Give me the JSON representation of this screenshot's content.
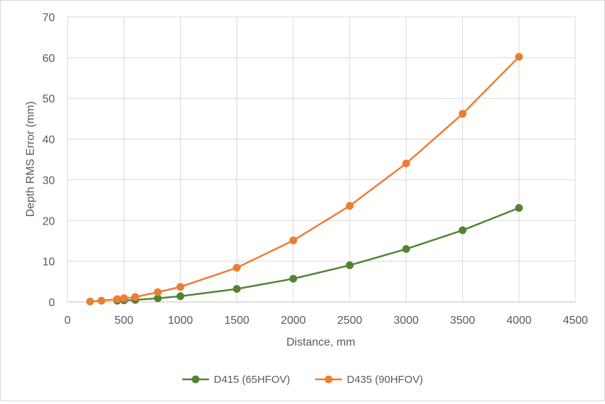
{
  "chart_data": {
    "type": "line",
    "title": "",
    "xlabel": "Distance, mm",
    "ylabel": "Depth RMS Error (mm)",
    "xlim": [
      0,
      4500
    ],
    "ylim": [
      0,
      70
    ],
    "xticks": [
      0,
      500,
      1000,
      1500,
      2000,
      2500,
      3000,
      3500,
      4000,
      4500
    ],
    "yticks": [
      0,
      10,
      20,
      30,
      40,
      50,
      60,
      70
    ],
    "grid": true,
    "legend_position": "bottom",
    "series": [
      {
        "name": "D415 (65HFOV)",
        "color": "#548235",
        "x": [
          440,
          500,
          600,
          800,
          1000,
          1500,
          2000,
          2500,
          3000,
          3500,
          4000
        ],
        "y": [
          0.3,
          0.4,
          0.5,
          0.9,
          1.4,
          3.2,
          5.7,
          9.0,
          13.0,
          17.6,
          23.1
        ]
      },
      {
        "name": "D435 (90HFOV)",
        "color": "#ED7D31",
        "x": [
          200,
          300,
          440,
          500,
          600,
          800,
          1000,
          1500,
          2000,
          2500,
          3000,
          3500,
          4000
        ],
        "y": [
          0.1,
          0.3,
          0.7,
          0.9,
          1.2,
          2.4,
          3.7,
          8.4,
          15.1,
          23.6,
          34.0,
          46.2,
          60.2
        ]
      }
    ]
  }
}
